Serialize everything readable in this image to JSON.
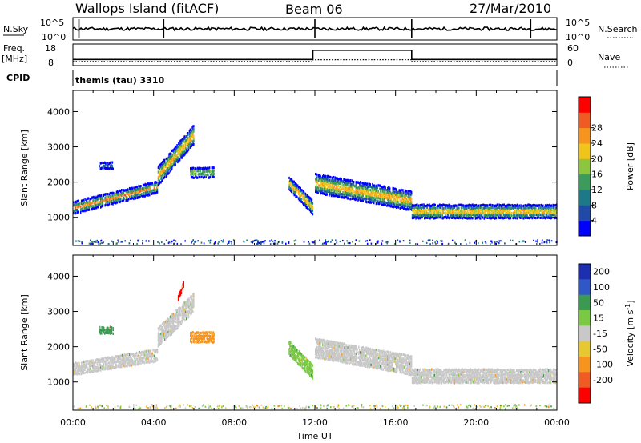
{
  "header": {
    "station": "Wallops Island (fitACF)",
    "beam": "Beam 06",
    "date": "27/Mar/2010"
  },
  "sky_panel": {
    "left_label": "N.Sky",
    "left_ticks": [
      "10^5",
      "10^0"
    ],
    "right_ticks": [
      "10^5",
      "10^0"
    ],
    "right_label": "N.Search"
  },
  "freq_panel": {
    "left_label_1": "Freq.",
    "left_label_2": "[MHz]",
    "left_ticks": [
      "18",
      "8"
    ],
    "right_ticks": [
      "60",
      "0"
    ],
    "right_label": "Nave"
  },
  "cpid": {
    "label": "CPID",
    "value": "themis (tau) 3310"
  },
  "colors": {
    "power": [
      "#0000ff",
      "#1f4aa8",
      "#1c7a88",
      "#3c9a5a",
      "#8cc63f",
      "#f0c419",
      "#f7941d",
      "#f05a23",
      "#ff0000"
    ],
    "velocity": [
      "#1c2fb0",
      "#2f57c8",
      "#3a9a52",
      "#7ac943",
      "#c8c8c8",
      "#e8c830",
      "#f7941d",
      "#f05a23",
      "#ff0000"
    ]
  },
  "chart_data": [
    {
      "type": "heatmap",
      "panel": "power",
      "ylabel": "Slant Range [km]",
      "yticks": [
        "1000",
        "2000",
        "3000",
        "4000"
      ],
      "ylim": [
        200,
        4600
      ],
      "xlim": [
        0,
        24
      ],
      "xticks": [
        "00:00",
        "04:00",
        "08:00",
        "12:00",
        "16:00",
        "20:00",
        "00:00"
      ],
      "xlabel": "Time UT",
      "colorbar": {
        "label": "Power [dB]",
        "ticks": [
          "4",
          "8",
          "12",
          "16",
          "20",
          "24",
          "28"
        ]
      },
      "echo_bands": [
        {
          "t0": 0.0,
          "t1": 4.2,
          "range_start": 1300,
          "range_end": 1900,
          "width": 300,
          "peak_db": 24
        },
        {
          "t0": 4.2,
          "t1": 6.0,
          "range_start": 2200,
          "range_end": 3400,
          "width": 500,
          "peak_db": 24
        },
        {
          "t0": 5.8,
          "t1": 7.0,
          "range_start": 2300,
          "range_end": 2300,
          "width": 250,
          "peak_db": 20
        },
        {
          "t0": 1.3,
          "t1": 2.0,
          "range_start": 2500,
          "range_end": 2500,
          "width": 150,
          "peak_db": 8
        },
        {
          "t0": 10.7,
          "t1": 11.9,
          "range_start": 2000,
          "range_end": 1300,
          "width": 350,
          "peak_db": 24
        },
        {
          "t0": 12.0,
          "t1": 16.8,
          "range_start": 2000,
          "range_end": 1500,
          "width": 500,
          "peak_db": 24
        },
        {
          "t0": 16.8,
          "t1": 24.0,
          "range_start": 1200,
          "range_end": 1200,
          "width": 350,
          "peak_db": 24
        }
      ]
    },
    {
      "type": "heatmap",
      "panel": "velocity",
      "ylabel": "Slant Range [km]",
      "yticks": [
        "1000",
        "2000",
        "3000",
        "4000"
      ],
      "ylim": [
        200,
        4600
      ],
      "xlim": [
        0,
        24
      ],
      "xticks": [
        "00:00",
        "04:00",
        "08:00",
        "12:00",
        "16:00",
        "20:00",
        "00:00"
      ],
      "xlabel": "Time UT",
      "colorbar": {
        "label": "Velocity [m s^-1]",
        "ticks": [
          "200",
          "100",
          "50",
          "15",
          "-15",
          "-50",
          "-100",
          "-200"
        ]
      },
      "echo_bands": [
        {
          "t0": 0.0,
          "t1": 4.2,
          "range_start": 1400,
          "range_end": 1800,
          "width": 300,
          "velocity": 0
        },
        {
          "t0": 4.2,
          "t1": 6.0,
          "range_start": 2300,
          "range_end": 3300,
          "width": 500,
          "velocity": 0
        },
        {
          "t0": 5.8,
          "t1": 7.0,
          "range_start": 2300,
          "range_end": 2300,
          "width": 250,
          "velocity": -60
        },
        {
          "t0": 5.2,
          "t1": 5.5,
          "range_start": 3400,
          "range_end": 3850,
          "width": 120,
          "velocity": -250
        },
        {
          "t0": 1.3,
          "t1": 2.0,
          "range_start": 2500,
          "range_end": 2500,
          "width": 150,
          "velocity": 60
        },
        {
          "t0": 10.7,
          "t1": 11.9,
          "range_start": 2000,
          "range_end": 1300,
          "width": 350,
          "velocity": 20
        },
        {
          "t0": 12.0,
          "t1": 16.8,
          "range_start": 2000,
          "range_end": 1500,
          "width": 500,
          "velocity": 0
        },
        {
          "t0": 16.8,
          "t1": 24.0,
          "range_start": 1200,
          "range_end": 1200,
          "width": 350,
          "velocity": 0
        }
      ]
    }
  ],
  "nsky_series": {
    "type": "line",
    "xlim": [
      0,
      24
    ],
    "typical_log_value": 2.5,
    "spikes_time": [
      0.3,
      4.5,
      12.0,
      16.8,
      22.7
    ]
  },
  "freq_series": {
    "type": "line",
    "xlim": [
      0,
      24
    ],
    "freq_mhz": [
      [
        0,
        10.5
      ],
      [
        11.9,
        10.5
      ],
      [
        11.9,
        15.5
      ],
      [
        16.8,
        15.5
      ],
      [
        16.8,
        10.5
      ],
      [
        24,
        10.5
      ]
    ],
    "nave": [
      [
        0,
        8
      ],
      [
        11.9,
        8
      ],
      [
        11.9,
        14
      ],
      [
        16.8,
        14
      ],
      [
        16.8,
        8
      ],
      [
        24,
        8
      ]
    ],
    "freq_ylim": [
      8,
      18
    ],
    "nave_ylim": [
      0,
      60
    ]
  }
}
